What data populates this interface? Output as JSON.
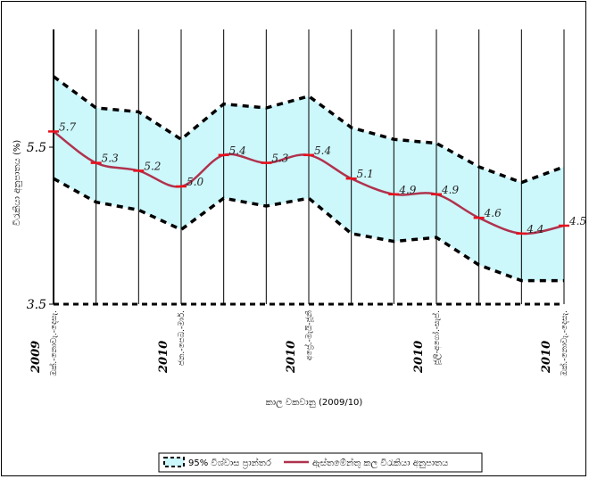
{
  "chart_data": {
    "type": "line",
    "ylabel": "විරැකියා අනුපාතය (%)",
    "xlabel": "කාල වකවානු (2009/10)",
    "ylim": [
      3.5,
      7.0
    ],
    "yticks": [
      "3.5",
      "5.5"
    ],
    "ytick_values": [
      3.5,
      5.5
    ],
    "x": [
      0,
      1,
      2,
      3,
      4,
      5,
      6,
      7,
      8,
      9,
      10,
      11,
      12
    ],
    "category_labels": [
      {
        "index": 0,
        "year": "2009",
        "label": "ඔක්.-නොවැ.-දෙසැ."
      },
      {
        "index": 3,
        "year": "2010",
        "label": "ජන.-පෙබ.-මාර්."
      },
      {
        "index": 6,
        "year": "2010",
        "label": "අප්‍රේ.-මැයි-ජූනි"
      },
      {
        "index": 9,
        "year": "2010",
        "label": "ජූලි-අගෝ.-සැප්."
      },
      {
        "index": 12,
        "year": "2010",
        "label": "ඔක්.-නොවැ.-දෙසැ."
      }
    ],
    "series": [
      {
        "name": "ඇස්තමේන්තු කල විරැකියා අනුපාතය",
        "color": "#b0324d",
        "values": [
          5.7,
          5.3,
          5.2,
          5.0,
          5.4,
          5.3,
          5.4,
          5.1,
          4.9,
          4.9,
          4.6,
          4.4,
          4.5
        ],
        "labels": [
          "5.7",
          "5.3",
          "5.2",
          "5.0",
          "5.4",
          "5.3",
          "5.4",
          "5.1",
          "4.9",
          "4.9",
          "4.6",
          "4.4",
          "4.5"
        ]
      },
      {
        "name": "95% විශ්වාස ප්‍රාන්තර",
        "upper": [
          6.4,
          6.0,
          5.95,
          5.6,
          6.05,
          6.0,
          6.15,
          5.75,
          5.6,
          5.55,
          5.25,
          5.05,
          5.25
        ],
        "lower": [
          5.1,
          4.8,
          4.7,
          4.45,
          4.85,
          4.75,
          4.85,
          4.4,
          4.3,
          4.35,
          4.0,
          3.8,
          3.8
        ],
        "fill": "#ccf7fb",
        "edge_color": "#000000"
      }
    ],
    "grid": "vertical"
  }
}
